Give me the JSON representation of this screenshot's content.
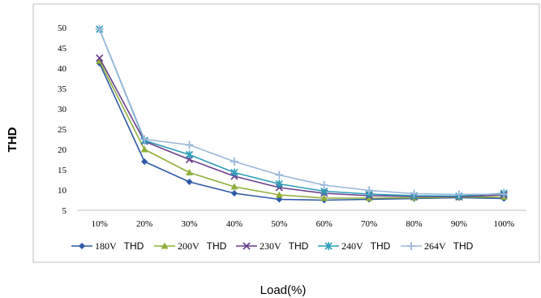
{
  "chart_data": {
    "type": "line",
    "categories": [
      "10%",
      "20%",
      "30%",
      "40%",
      "50%",
      "60%",
      "70%",
      "80%",
      "90%",
      "100%"
    ],
    "series": [
      {
        "name": "180V",
        "name_suffix": "THD",
        "color": "#2E5AA8",
        "marker": "diamond",
        "values": [
          41.2,
          17.0,
          12.0,
          9.2,
          7.7,
          7.5,
          7.7,
          7.9,
          8.1,
          7.9
        ]
      },
      {
        "name": "200V",
        "name_suffix": "THD",
        "color": "#8FAF3A",
        "marker": "triangle",
        "values": [
          41.8,
          20.0,
          14.3,
          10.8,
          8.8,
          8.0,
          8.0,
          8.1,
          8.2,
          8.3
        ]
      },
      {
        "name": "230V",
        "name_suffix": "THD",
        "color": "#6A3F8C",
        "marker": "x",
        "values": [
          42.5,
          22.0,
          17.5,
          13.4,
          10.6,
          9.2,
          8.6,
          8.4,
          8.3,
          8.8
        ]
      },
      {
        "name": "240V",
        "name_suffix": "THD",
        "color": "#2A9DB8",
        "marker": "star",
        "values": [
          49.6,
          22.2,
          18.7,
          14.3,
          11.5,
          9.7,
          9.0,
          8.6,
          8.5,
          9.2
        ]
      },
      {
        "name": "264V",
        "name_suffix": "THD",
        "color": "#9BB7DA",
        "marker": "plus",
        "values": [
          49.6,
          22.5,
          21.1,
          17.0,
          13.7,
          11.2,
          9.9,
          9.1,
          8.9,
          9.0
        ]
      }
    ],
    "yticks": [
      5,
      10,
      15,
      20,
      25,
      30,
      35,
      40,
      45,
      50
    ],
    "ylim": [
      5,
      50
    ],
    "xlabel": "Load(%)",
    "ylabel": "THD",
    "legend_position": "bottom",
    "grid": false
  }
}
